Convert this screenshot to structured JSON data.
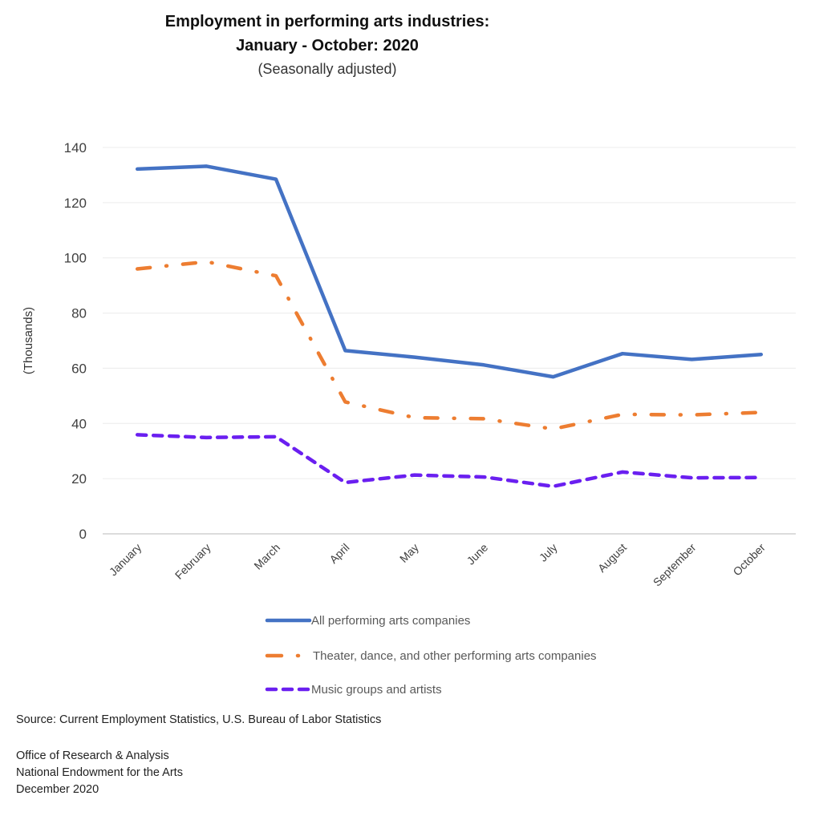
{
  "chart_data": {
    "type": "line",
    "title": "Employment in performing arts industries:",
    "title_line2": "January - October: 2020",
    "subtitle": "(Seasonally adjusted)",
    "xlabel": "",
    "ylabel": "(Thousands)",
    "ylim": [
      0,
      140
    ],
    "yticks": [
      0,
      20,
      40,
      60,
      80,
      100,
      120,
      140
    ],
    "grid": true,
    "categories": [
      "January",
      "February",
      "March",
      "April",
      "May",
      "June",
      "July",
      "August",
      "September",
      "October"
    ],
    "series": [
      {
        "name": "All performing arts companies",
        "color": "#4472C4",
        "style": "solid",
        "values": [
          132.2,
          133.2,
          128.5,
          66.4,
          64.0,
          61.2,
          56.9,
          65.3,
          63.2,
          65.0
        ]
      },
      {
        "name": "Theater, dance, and other performing arts companies",
        "color": "#ED7D31",
        "style": "dash-dot",
        "values": [
          96.0,
          98.6,
          93.5,
          47.8,
          42.1,
          41.7,
          38.0,
          43.3,
          43.1,
          44.0
        ]
      },
      {
        "name": "Music groups and artists",
        "color": "#6A1FF0",
        "style": "dashed",
        "values": [
          35.9,
          34.9,
          35.2,
          18.6,
          21.3,
          20.6,
          17.2,
          22.4,
          20.3,
          20.4
        ]
      }
    ],
    "legend_position": "bottom"
  },
  "footer": {
    "source": "Source: Current Employment Statistics, U.S. Bureau of Labor Statistics",
    "office": "Office of Research & Analysis",
    "agency": "National Endowment for the Arts",
    "date": "December 2020"
  }
}
